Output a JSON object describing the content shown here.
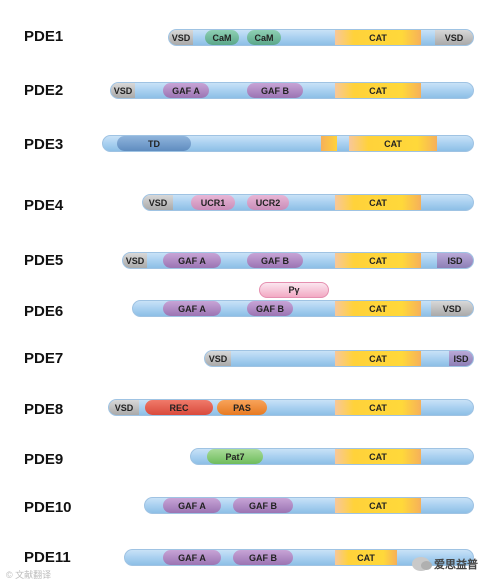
{
  "rows": {
    "pde1": {
      "name": "PDE1",
      "d1": "VSD",
      "d2": "CaM",
      "d3": "CaM",
      "cat": "CAT",
      "end": "VSD"
    },
    "pde2": {
      "name": "PDE2",
      "d1": "VSD",
      "d2": "GAF A",
      "d3": "GAF B",
      "cat": "CAT"
    },
    "pde3": {
      "name": "PDE3",
      "d1": "TD",
      "cat": "CAT"
    },
    "pde4": {
      "name": "PDE4",
      "d1": "VSD",
      "d2": "UCR1",
      "d3": "UCR2",
      "cat": "CAT"
    },
    "pde5": {
      "name": "PDE5",
      "d1": "VSD",
      "d2": "GAF A",
      "d3": "GAF B",
      "cat": "CAT",
      "end": "ISD"
    },
    "pde6": {
      "name": "PDE6",
      "d2": "GAF A",
      "d3": "GAF B",
      "cat": "CAT",
      "end": "VSD",
      "extra": "Pγ"
    },
    "pde7": {
      "name": "PDE7",
      "d1": "VSD",
      "cat": "CAT",
      "end": "ISD"
    },
    "pde8": {
      "name": "PDE8",
      "d1": "VSD",
      "d2": "REC",
      "d3": "PAS",
      "cat": "CAT"
    },
    "pde9": {
      "name": "PDE9",
      "d2": "Pat7",
      "cat": "CAT"
    },
    "pde10": {
      "name": "PDE10",
      "d2": "GAF A",
      "d3": "GAF B",
      "cat": "CAT"
    },
    "pde11": {
      "name": "PDE11",
      "d2": "GAF A",
      "d3": "GAF B",
      "cat": "CAT"
    }
  },
  "watermark": {
    "left": "© 文献翻译",
    "right": "爱思益普"
  },
  "colors": {
    "bar": "#a9d0f0",
    "catalytic": "#ffd23a",
    "gaf": "#9b74b3",
    "cam": "#5aa78a",
    "ucr": "#c98cb8",
    "variable": "#a9a9a9",
    "isd": "#8d7fb6",
    "rec": "#d94a3c",
    "pas": "#e77a22",
    "pat7": "#6fbc5c",
    "pgamma": "#f2a9c3"
  }
}
